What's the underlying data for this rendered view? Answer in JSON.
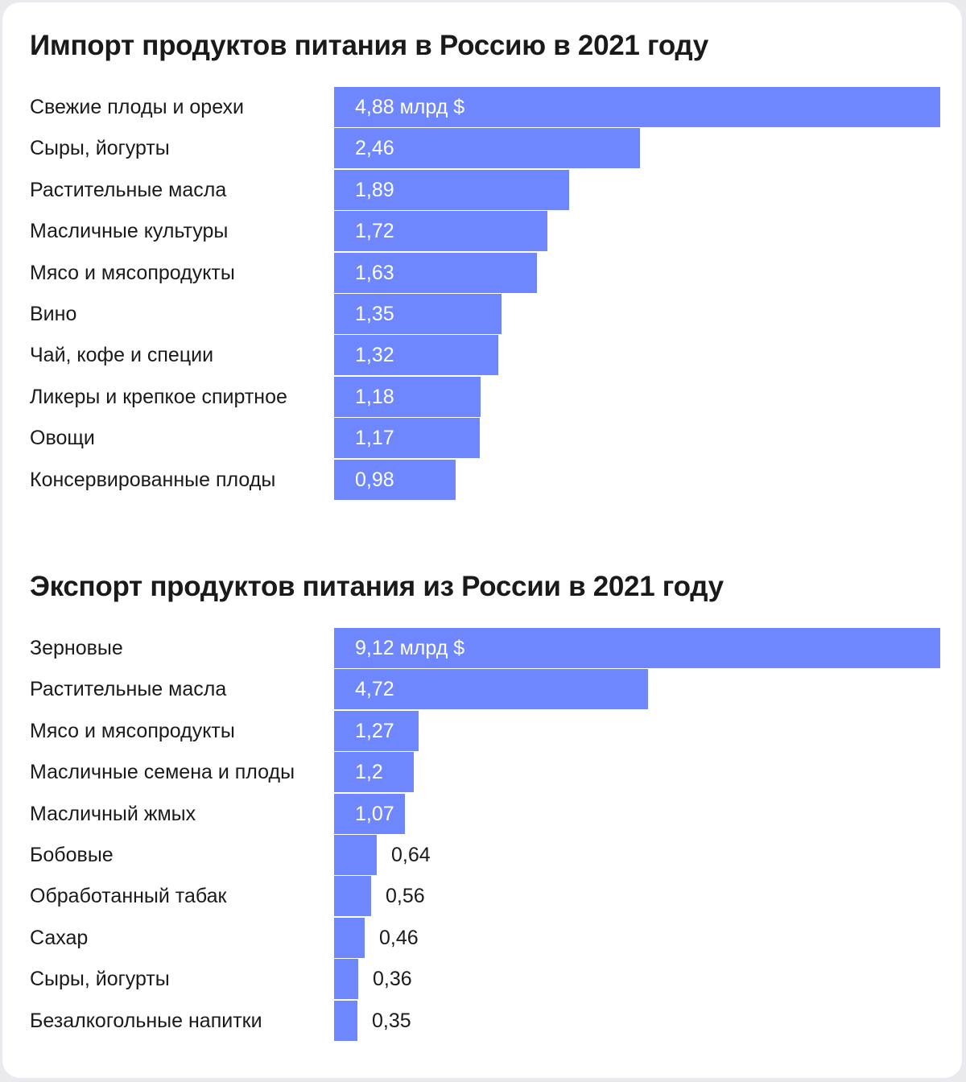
{
  "chart_data": [
    {
      "type": "bar",
      "orientation": "horizontal",
      "title": "Импорт продуктов питания в Россию в 2021 году",
      "unit": "млрд $",
      "categories": [
        "Свежие плоды и орехи",
        "Сыры, йогурты",
        "Растительные масла",
        "Масличные культуры",
        "Мясо и мясопродукты",
        "Вино",
        "Чай, кофе и специи",
        "Ликеры и крепкое спиртное",
        "Овощи",
        "Консервированные плоды"
      ],
      "values": [
        4.88,
        2.46,
        1.89,
        1.72,
        1.63,
        1.35,
        1.32,
        1.18,
        1.17,
        0.98
      ],
      "value_labels": [
        "4,88 млрд $",
        "2,46",
        "1,89",
        "1,72",
        "1,63",
        "1,35",
        "1,32",
        "1,18",
        "1,17",
        "0,98"
      ],
      "xlim": [
        0,
        4.88
      ],
      "color": "#6e87ff",
      "grid": false
    },
    {
      "type": "bar",
      "orientation": "horizontal",
      "title": "Экспорт продуктов питания из России в 2021 году",
      "unit": "млрд $",
      "categories": [
        "Зерновые",
        "Растительные масла",
        "Мясо и мясопродукты",
        "Масличные семена и плоды",
        "Масличный жмых",
        "Бобовые",
        "Обработанный табак",
        "Сахар",
        "Сыры, йогурты",
        "Безалкогольные напитки"
      ],
      "values": [
        9.12,
        4.72,
        1.27,
        1.2,
        1.07,
        0.64,
        0.56,
        0.46,
        0.36,
        0.35
      ],
      "value_labels": [
        "9,12 млрд $",
        "4,72",
        "1,27",
        "1,2",
        "1,07",
        "0,64",
        "0,56",
        "0,46",
        "0,36",
        "0,35"
      ],
      "xlim": [
        0,
        9.12
      ],
      "color": "#6e87ff",
      "grid": false
    }
  ]
}
